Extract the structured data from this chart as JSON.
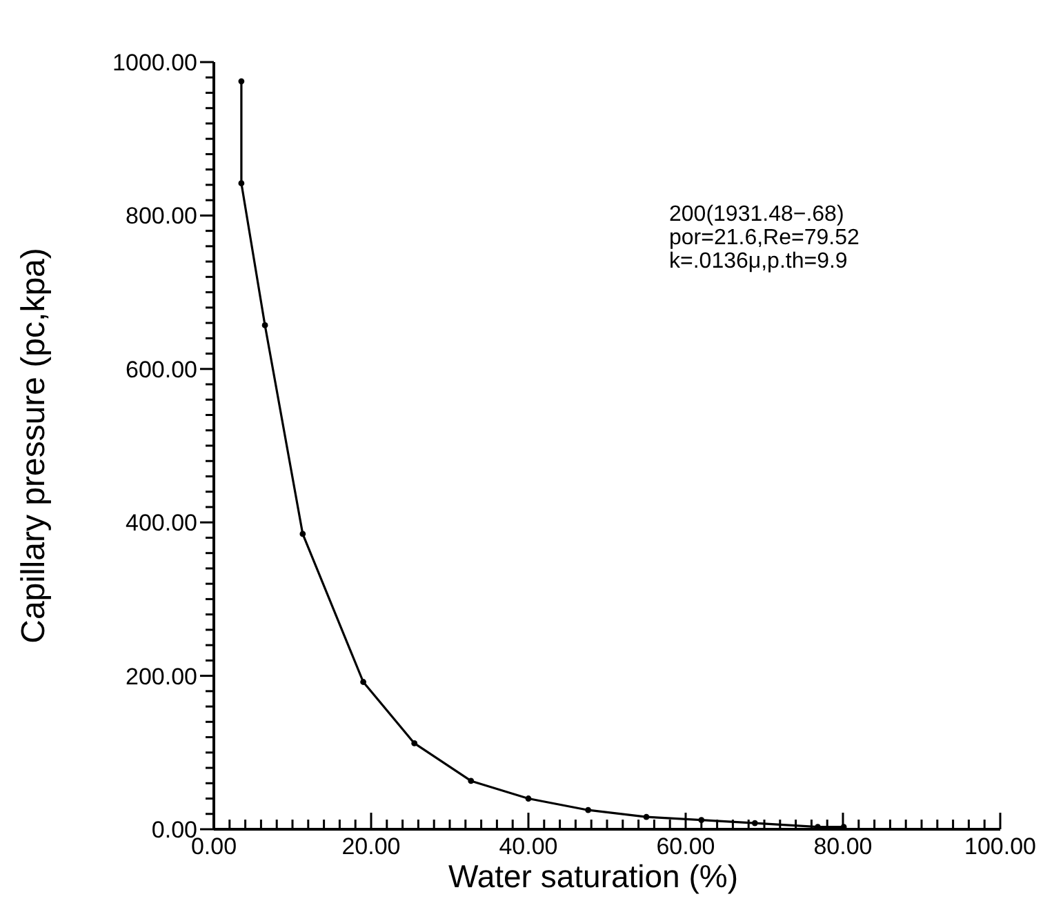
{
  "chart_data": {
    "type": "line",
    "xlabel": "Water saturation (%)",
    "ylabel": "Capillary pressure (pc,kpa)",
    "annotations": [
      "200(1931.48−.68)",
      "por=21.6,Re=79.52",
      "k=.0136μ,p.th=9.9"
    ],
    "marker": "circle",
    "line_style": "solid",
    "grid": false,
    "series": [
      {
        "color": "#000000",
        "x": [
          3.5,
          3.5,
          6.5,
          11.3,
          19.0,
          25.5,
          32.7,
          40.0,
          47.6,
          55.0,
          62.0,
          68.8,
          76.8,
          80.1
        ],
        "values": [
          975,
          842,
          657,
          385,
          192,
          112,
          63,
          40,
          25,
          16,
          12,
          8,
          3,
          3
        ]
      }
    ],
    "xlim": [
      0,
      100
    ],
    "ylim": [
      0,
      1000
    ],
    "xticks": [
      {
        "value": 0,
        "label": "0.00"
      },
      {
        "value": 2,
        "label": null
      },
      {
        "value": 4,
        "label": null
      },
      {
        "value": 6,
        "label": null
      },
      {
        "value": 8,
        "label": null
      },
      {
        "value": 10,
        "label": null
      },
      {
        "value": 12,
        "label": null
      },
      {
        "value": 14,
        "label": null
      },
      {
        "value": 16,
        "label": null
      },
      {
        "value": 18,
        "label": null
      },
      {
        "value": 20,
        "label": "20.00"
      },
      {
        "value": 22,
        "label": null
      },
      {
        "value": 24,
        "label": null
      },
      {
        "value": 26,
        "label": null
      },
      {
        "value": 28,
        "label": null
      },
      {
        "value": 30,
        "label": null
      },
      {
        "value": 32,
        "label": null
      },
      {
        "value": 34,
        "label": null
      },
      {
        "value": 36,
        "label": null
      },
      {
        "value": 38,
        "label": null
      },
      {
        "value": 40,
        "label": "40.00"
      },
      {
        "value": 42,
        "label": null
      },
      {
        "value": 44,
        "label": null
      },
      {
        "value": 46,
        "label": null
      },
      {
        "value": 48,
        "label": null
      },
      {
        "value": 50,
        "label": null
      },
      {
        "value": 52,
        "label": null
      },
      {
        "value": 54,
        "label": null
      },
      {
        "value": 56,
        "label": null
      },
      {
        "value": 58,
        "label": null
      },
      {
        "value": 60,
        "label": "60.00"
      },
      {
        "value": 62,
        "label": null
      },
      {
        "value": 64,
        "label": null
      },
      {
        "value": 66,
        "label": null
      },
      {
        "value": 68,
        "label": null
      },
      {
        "value": 70,
        "label": null
      },
      {
        "value": 72,
        "label": null
      },
      {
        "value": 74,
        "label": null
      },
      {
        "value": 76,
        "label": null
      },
      {
        "value": 78,
        "label": null
      },
      {
        "value": 80,
        "label": "80.00"
      },
      {
        "value": 82,
        "label": null
      },
      {
        "value": 84,
        "label": null
      },
      {
        "value": 86,
        "label": null
      },
      {
        "value": 88,
        "label": null
      },
      {
        "value": 90,
        "label": null
      },
      {
        "value": 92,
        "label": null
      },
      {
        "value": 94,
        "label": null
      },
      {
        "value": 96,
        "label": null
      },
      {
        "value": 98,
        "label": null
      },
      {
        "value": 100,
        "label": "100.00"
      }
    ],
    "yticks": [
      {
        "value": 0,
        "label": "0.00"
      },
      {
        "value": 20,
        "label": null
      },
      {
        "value": 40,
        "label": null
      },
      {
        "value": 60,
        "label": null
      },
      {
        "value": 80,
        "label": null
      },
      {
        "value": 100,
        "label": null
      },
      {
        "value": 120,
        "label": null
      },
      {
        "value": 140,
        "label": null
      },
      {
        "value": 160,
        "label": null
      },
      {
        "value": 180,
        "label": null
      },
      {
        "value": 200,
        "label": "200.00"
      },
      {
        "value": 220,
        "label": null
      },
      {
        "value": 240,
        "label": null
      },
      {
        "value": 260,
        "label": null
      },
      {
        "value": 280,
        "label": null
      },
      {
        "value": 300,
        "label": null
      },
      {
        "value": 320,
        "label": null
      },
      {
        "value": 340,
        "label": null
      },
      {
        "value": 360,
        "label": null
      },
      {
        "value": 380,
        "label": null
      },
      {
        "value": 400,
        "label": "400.00"
      },
      {
        "value": 420,
        "label": null
      },
      {
        "value": 440,
        "label": null
      },
      {
        "value": 460,
        "label": null
      },
      {
        "value": 480,
        "label": null
      },
      {
        "value": 500,
        "label": null
      },
      {
        "value": 520,
        "label": null
      },
      {
        "value": 540,
        "label": null
      },
      {
        "value": 560,
        "label": null
      },
      {
        "value": 580,
        "label": null
      },
      {
        "value": 600,
        "label": "600.00"
      },
      {
        "value": 620,
        "label": null
      },
      {
        "value": 640,
        "label": null
      },
      {
        "value": 660,
        "label": null
      },
      {
        "value": 680,
        "label": null
      },
      {
        "value": 700,
        "label": null
      },
      {
        "value": 720,
        "label": null
      },
      {
        "value": 740,
        "label": null
      },
      {
        "value": 760,
        "label": null
      },
      {
        "value": 780,
        "label": null
      },
      {
        "value": 800,
        "label": "800.00"
      },
      {
        "value": 820,
        "label": null
      },
      {
        "value": 840,
        "label": null
      },
      {
        "value": 860,
        "label": null
      },
      {
        "value": 880,
        "label": null
      },
      {
        "value": 900,
        "label": null
      },
      {
        "value": 920,
        "label": null
      },
      {
        "value": 940,
        "label": null
      },
      {
        "value": 960,
        "label": null
      },
      {
        "value": 980,
        "label": null
      },
      {
        "value": 1000,
        "label": "1000.00"
      }
    ]
  }
}
